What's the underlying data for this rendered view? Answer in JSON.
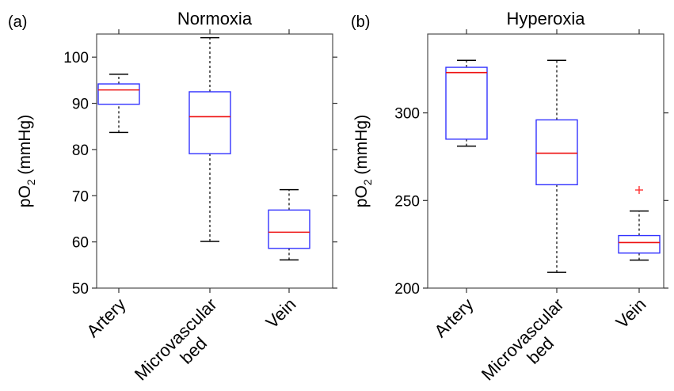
{
  "chart_data": [
    {
      "type": "box",
      "panel_label": "(a)",
      "title": "Normoxia",
      "ylabel": "pO2 (mmHg)",
      "ylabel_main": "pO",
      "ylabel_sub": "2",
      "ylabel_unit": " (mmHg)",
      "ylim": [
        50,
        105
      ],
      "yticks": [
        50,
        60,
        70,
        80,
        90,
        100
      ],
      "categories": [
        "Artery",
        "Microvascular bed",
        "Vein"
      ],
      "category_lines": [
        [
          "Artery"
        ],
        [
          "Microvascular",
          "bed"
        ],
        [
          "Vein"
        ]
      ],
      "boxes": [
        {
          "category": "Artery",
          "whisker_low": 83.7,
          "q1": 89.8,
          "median": 92.9,
          "q3": 94.2,
          "whisker_high": 96.3,
          "outliers": []
        },
        {
          "category": "Microvascular bed",
          "whisker_low": 60.1,
          "q1": 79.1,
          "median": 87.1,
          "q3": 92.5,
          "whisker_high": 104.2,
          "outliers": []
        },
        {
          "category": "Vein",
          "whisker_low": 56.1,
          "q1": 58.6,
          "median": 62.1,
          "q3": 66.9,
          "whisker_high": 71.3,
          "outliers": []
        }
      ],
      "colors": {
        "box": "#3333ff",
        "median": "#ee1111",
        "whisker": "#000000",
        "outlier": "#ff3333"
      }
    },
    {
      "type": "box",
      "panel_label": "(b)",
      "title": "Hyperoxia",
      "ylabel": "pO2 (mmHg)",
      "ylabel_main": "pO",
      "ylabel_sub": "2",
      "ylabel_unit": " (mmHg)",
      "ylim": [
        200,
        345
      ],
      "yticks": [
        200,
        250,
        300
      ],
      "categories": [
        "Artery",
        "Microvascular bed",
        "Vein"
      ],
      "category_lines": [
        [
          "Artery"
        ],
        [
          "Microvascular",
          "bed"
        ],
        [
          "Vein"
        ]
      ],
      "boxes": [
        {
          "category": "Artery",
          "whisker_low": 281,
          "q1": 285,
          "median": 323,
          "q3": 326,
          "whisker_high": 330,
          "outliers": []
        },
        {
          "category": "Microvascular bed",
          "whisker_low": 209,
          "q1": 259,
          "median": 277,
          "q3": 296,
          "whisker_high": 330,
          "outliers": []
        },
        {
          "category": "Vein",
          "whisker_low": 216,
          "q1": 220,
          "median": 226,
          "q3": 230,
          "whisker_high": 244,
          "outliers": [
            256
          ]
        }
      ],
      "colors": {
        "box": "#3333ff",
        "median": "#ee1111",
        "whisker": "#000000",
        "outlier": "#ff3333"
      }
    }
  ]
}
